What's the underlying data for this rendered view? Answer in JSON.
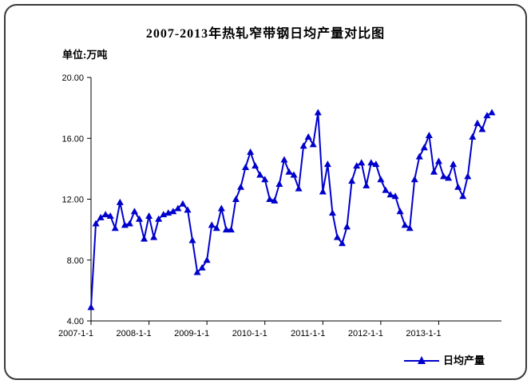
{
  "chart": {
    "title": "2007-2013年热轧窄带钢日均产量对比图",
    "unit_label": "单位:万吨",
    "legend_label": "日均产量"
  },
  "chart_data": {
    "type": "line",
    "title": "2007-2013年热轧窄带钢日均产量对比图",
    "unit": "万吨",
    "xlabel": "",
    "ylabel": "单位:万吨",
    "ylim": [
      4,
      20
    ],
    "y_ticks": [
      {
        "value": 20,
        "label": "20.00"
      },
      {
        "value": 16,
        "label": "16.00"
      },
      {
        "value": 12,
        "label": "12.00"
      },
      {
        "value": 8,
        "label": "8.00"
      },
      {
        "value": 4,
        "label": "4.00"
      }
    ],
    "x_start": "2007-01",
    "x_interval": "month",
    "x_tick_every": 12,
    "x_tick_labels": [
      "2007-1-1",
      "2008-1-1",
      "2009-1-1",
      "2010-1-1",
      "2011-1-1",
      "2012-1-1",
      "2013-1-1"
    ],
    "grid": false,
    "legend_position": "bottom-right",
    "series": [
      {
        "name": "日均产量",
        "color": "#0000CC",
        "marker": "triangle",
        "values": [
          4.9,
          10.4,
          10.8,
          11.0,
          10.9,
          10.1,
          11.8,
          10.3,
          10.4,
          11.2,
          10.7,
          9.4,
          10.9,
          9.5,
          10.7,
          11.0,
          11.1,
          11.2,
          11.4,
          11.7,
          11.3,
          9.3,
          7.2,
          7.5,
          8.0,
          10.3,
          10.1,
          11.4,
          10.0,
          10.0,
          12.0,
          12.8,
          14.1,
          15.1,
          14.2,
          13.6,
          13.3,
          12.0,
          11.9,
          13.0,
          14.6,
          13.8,
          13.6,
          12.7,
          15.5,
          16.1,
          15.6,
          17.7,
          12.5,
          14.3,
          11.1,
          9.5,
          9.1,
          10.2,
          13.2,
          14.2,
          14.4,
          12.9,
          14.4,
          14.3,
          13.3,
          12.6,
          12.3,
          12.2,
          11.2,
          10.3,
          10.1,
          13.3,
          14.8,
          15.4,
          16.2,
          13.8,
          14.5,
          13.5,
          13.4,
          14.3,
          12.8,
          12.2,
          13.5,
          16.1,
          17.0,
          16.6,
          17.5,
          17.7
        ]
      }
    ]
  }
}
